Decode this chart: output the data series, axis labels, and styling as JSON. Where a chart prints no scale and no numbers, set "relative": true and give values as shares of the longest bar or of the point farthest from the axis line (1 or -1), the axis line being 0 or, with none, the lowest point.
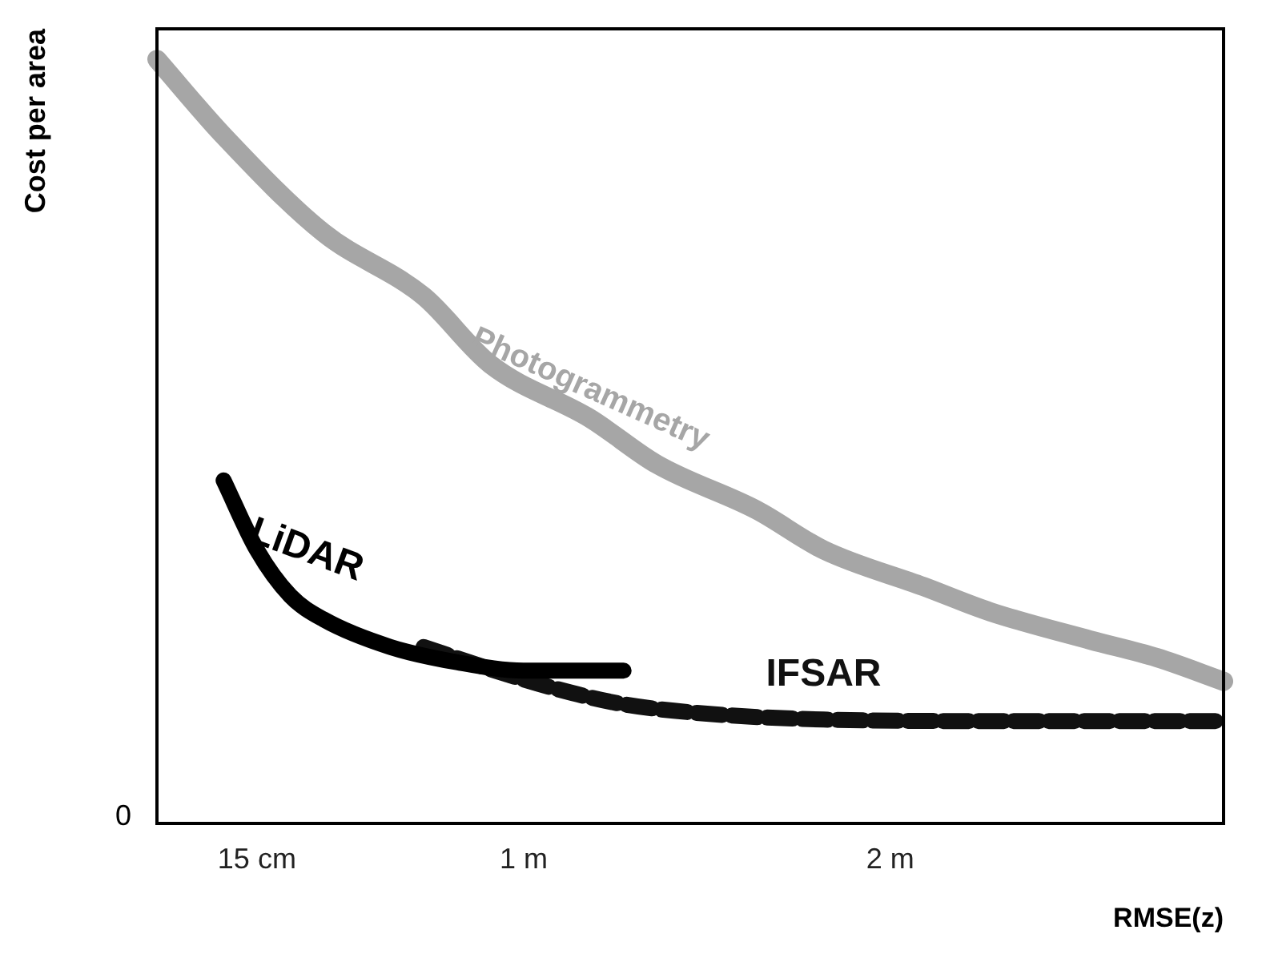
{
  "chart_data": {
    "type": "line",
    "relative": true,
    "xlabel": "RMSE(z)",
    "ylabel": "Cost per area",
    "annotations": [
      "0"
    ],
    "categories": [
      null,
      null,
      null,
      "15 cm",
      null,
      null,
      null,
      null,
      null,
      null,
      null,
      "1 m",
      null,
      null,
      null,
      null,
      null,
      null,
      null,
      null,
      null,
      null,
      "2 m",
      null,
      null,
      null,
      null,
      null,
      null,
      null,
      null,
      null,
      null
    ],
    "series": [
      {
        "name": "Photogrammetry",
        "color": "#a6a6a6",
        "line_style": "solid",
        "values": [
          1.0,
          null,
          0.9,
          null,
          null,
          0.773,
          null,
          null,
          0.69,
          null,
          0.601,
          null,
          null,
          0.53,
          null,
          0.47,
          null,
          null,
          0.41,
          null,
          0.358,
          null,
          null,
          0.31,
          null,
          0.277,
          null,
          null,
          0.24,
          null,
          0.217,
          null,
          0.186
        ]
      },
      {
        "name": "LiDAR",
        "color": "#000000",
        "line_style": "solid",
        "values": [
          null,
          null,
          0.449,
          0.358,
          0.298,
          0.267,
          null,
          0.231,
          null,
          0.211,
          null,
          0.2,
          null,
          null,
          0.2,
          null,
          null,
          null,
          null,
          null,
          null,
          null,
          null,
          null,
          null,
          null,
          null,
          null,
          null,
          null,
          null,
          null,
          null
        ]
      },
      {
        "name": "IFSAR",
        "color": "#111111",
        "line_style": "dashed",
        "values": [
          null,
          null,
          null,
          null,
          null,
          null,
          null,
          null,
          0.231,
          null,
          0.202,
          null,
          0.176,
          null,
          0.156,
          null,
          null,
          0.142,
          null,
          null,
          0.136,
          null,
          null,
          null,
          null,
          0.134,
          null,
          null,
          null,
          null,
          null,
          null,
          0.134
        ]
      }
    ],
    "grid": false,
    "legend": false,
    "marker": "none"
  }
}
